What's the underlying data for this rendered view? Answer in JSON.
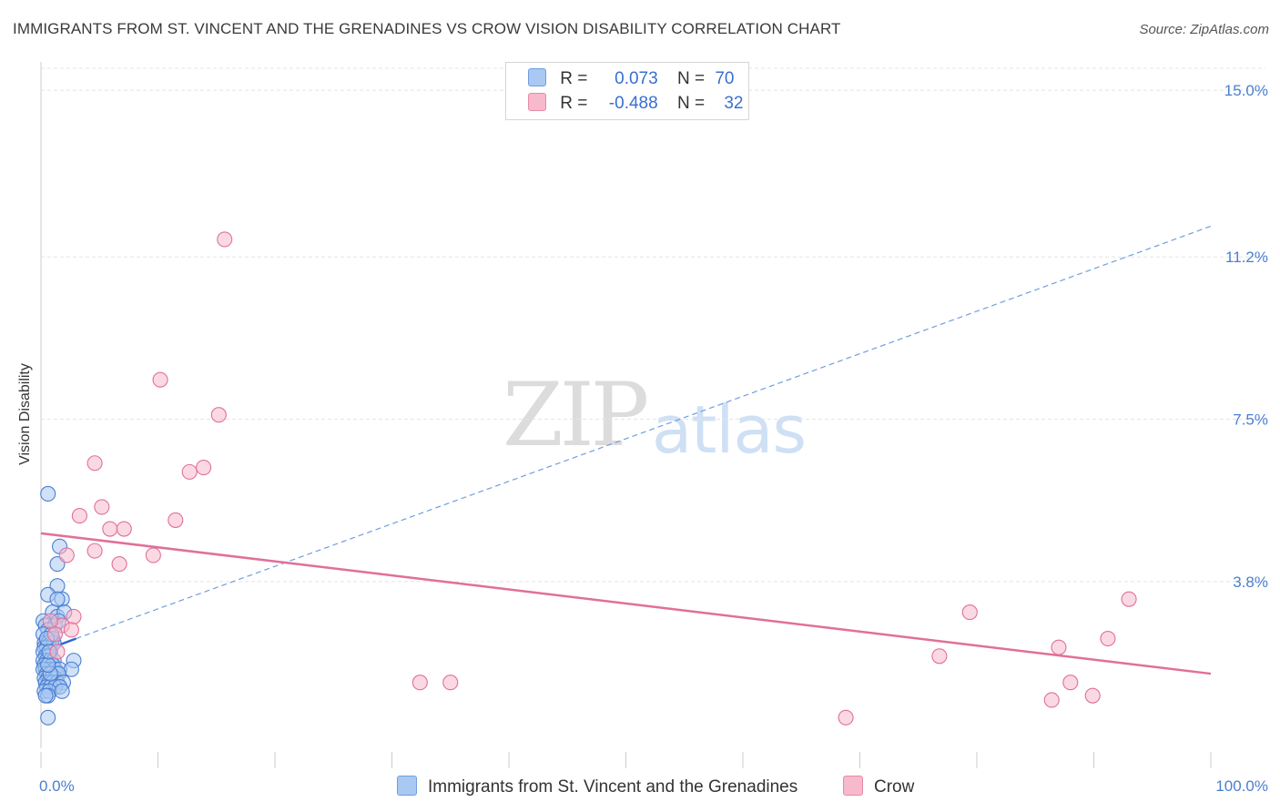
{
  "title": "IMMIGRANTS FROM ST. VINCENT AND THE GRENADINES VS CROW VISION DISABILITY CORRELATION CHART",
  "source": "Source: ZipAtlas.com",
  "watermark": {
    "zip": "ZIP",
    "atlas": "atlas"
  },
  "legend": {
    "rows": [
      {
        "r_label": "R =",
        "r_value": "0.073",
        "n_label": "N =",
        "n_value": "70",
        "color": "#a9c8f2"
      },
      {
        "r_label": "R =",
        "r_value": "-0.488",
        "n_label": "N =",
        "n_value": "32",
        "color": "#f7b9cc"
      }
    ]
  },
  "bottom_legend": [
    {
      "label": "Immigrants from St. Vincent and the Grenadines",
      "color": "#a9c8f2"
    },
    {
      "label": "Crow",
      "color": "#f7b9cc"
    }
  ],
  "chart_data": {
    "type": "scatter",
    "title": "IMMIGRANTS FROM ST. VINCENT AND THE GRENADINES VS CROW VISION DISABILITY CORRELATION CHART",
    "xlabel": "",
    "ylabel": "Vision Disability",
    "xlim": [
      0,
      100
    ],
    "ylim": [
      0,
      15.5
    ],
    "x_tick_labels": [
      "0.0%",
      "100.0%"
    ],
    "y_ticks": [
      3.8,
      7.5,
      11.2,
      15.0
    ],
    "y_tick_labels": [
      "3.8%",
      "7.5%",
      "11.2%",
      "15.0%"
    ],
    "grid": true,
    "series": [
      {
        "name": "Immigrants from St. Vincent and the Grenadines",
        "color": "#4a7fd0",
        "fill": "#a9c8f2",
        "points": [
          [
            0.6,
            5.8
          ],
          [
            1.6,
            4.6
          ],
          [
            1.4,
            4.2
          ],
          [
            1.4,
            3.7
          ],
          [
            0.6,
            3.5
          ],
          [
            1.8,
            3.4
          ],
          [
            1.4,
            3.4
          ],
          [
            1.0,
            3.1
          ],
          [
            1.4,
            3.0
          ],
          [
            2.0,
            3.1
          ],
          [
            0.2,
            2.9
          ],
          [
            0.4,
            2.8
          ],
          [
            1.2,
            2.8
          ],
          [
            0.6,
            2.7
          ],
          [
            0.2,
            2.6
          ],
          [
            0.8,
            2.5
          ],
          [
            1.0,
            2.5
          ],
          [
            0.3,
            2.4
          ],
          [
            0.6,
            2.4
          ],
          [
            0.9,
            2.4
          ],
          [
            0.3,
            2.3
          ],
          [
            0.5,
            2.3
          ],
          [
            0.8,
            2.2
          ],
          [
            0.2,
            2.2
          ],
          [
            0.4,
            2.1
          ],
          [
            0.7,
            2.1
          ],
          [
            0.2,
            2.0
          ],
          [
            0.5,
            2.0
          ],
          [
            0.8,
            2.0
          ],
          [
            1.1,
            2.0
          ],
          [
            0.3,
            1.9
          ],
          [
            0.6,
            1.9
          ],
          [
            2.8,
            2.0
          ],
          [
            1.0,
            1.9
          ],
          [
            0.4,
            1.8
          ],
          [
            0.7,
            1.8
          ],
          [
            1.2,
            1.8
          ],
          [
            0.2,
            1.8
          ],
          [
            0.5,
            1.7
          ],
          [
            0.8,
            1.7
          ],
          [
            1.3,
            1.7
          ],
          [
            1.6,
            1.8
          ],
          [
            2.6,
            1.8
          ],
          [
            0.3,
            1.6
          ],
          [
            0.6,
            1.6
          ],
          [
            0.9,
            1.6
          ],
          [
            1.2,
            1.6
          ],
          [
            1.5,
            1.7
          ],
          [
            0.4,
            1.5
          ],
          [
            0.7,
            1.5
          ],
          [
            1.0,
            1.5
          ],
          [
            1.4,
            1.5
          ],
          [
            1.9,
            1.5
          ],
          [
            0.5,
            1.4
          ],
          [
            0.8,
            1.4
          ],
          [
            1.2,
            1.4
          ],
          [
            1.6,
            1.4
          ],
          [
            0.3,
            1.3
          ],
          [
            0.7,
            1.3
          ],
          [
            1.8,
            1.3
          ],
          [
            0.6,
            1.2
          ],
          [
            0.4,
            1.2
          ],
          [
            0.8,
            1.7
          ],
          [
            0.6,
            1.9
          ],
          [
            1.1,
            2.4
          ],
          [
            0.9,
            2.6
          ],
          [
            0.5,
            2.5
          ],
          [
            0.7,
            2.2
          ],
          [
            1.5,
            2.9
          ],
          [
            0.6,
            0.7
          ]
        ],
        "trend": {
          "x": [
            0.0,
            3.0
          ],
          "y": [
            2.2,
            2.5
          ],
          "style": "solid"
        },
        "trend_extended": {
          "x": [
            3.0,
            100.0
          ],
          "y": [
            2.5,
            11.9
          ],
          "style": "dashed"
        }
      },
      {
        "name": "Crow",
        "color": "#e07099",
        "fill": "#f7b9cc",
        "points": [
          [
            15.7,
            11.6
          ],
          [
            10.2,
            8.4
          ],
          [
            15.2,
            7.6
          ],
          [
            4.6,
            6.5
          ],
          [
            13.9,
            6.4
          ],
          [
            12.7,
            6.3
          ],
          [
            5.2,
            5.5
          ],
          [
            3.3,
            5.3
          ],
          [
            11.5,
            5.2
          ],
          [
            5.9,
            5.0
          ],
          [
            7.1,
            5.0
          ],
          [
            2.2,
            4.4
          ],
          [
            9.6,
            4.4
          ],
          [
            4.6,
            4.5
          ],
          [
            6.7,
            4.2
          ],
          [
            2.8,
            3.0
          ],
          [
            1.8,
            2.8
          ],
          [
            2.6,
            2.7
          ],
          [
            1.2,
            2.6
          ],
          [
            32.4,
            1.5
          ],
          [
            35.0,
            1.5
          ],
          [
            79.4,
            3.1
          ],
          [
            76.8,
            2.1
          ],
          [
            93.0,
            3.4
          ],
          [
            87.0,
            2.3
          ],
          [
            91.2,
            2.5
          ],
          [
            88.0,
            1.5
          ],
          [
            89.9,
            1.2
          ],
          [
            86.4,
            1.1
          ],
          [
            68.8,
            0.7
          ],
          [
            0.8,
            2.9
          ],
          [
            1.4,
            2.2
          ]
        ],
        "trend": {
          "x": [
            0.0,
            100.0
          ],
          "y": [
            4.9,
            1.7
          ],
          "style": "solid"
        }
      }
    ]
  }
}
